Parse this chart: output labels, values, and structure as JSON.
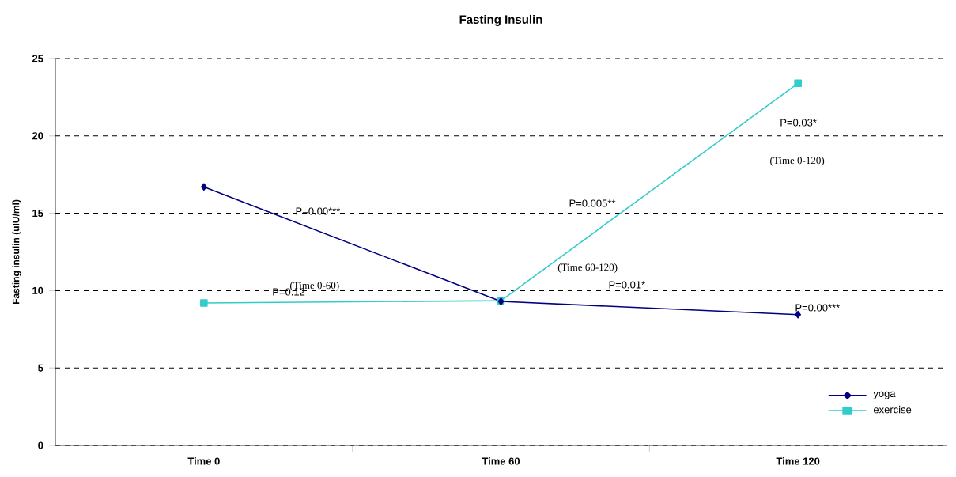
{
  "chart_data": {
    "type": "line",
    "title": "Fasting Insulin",
    "ylabel": "Fasting insulin (uIU/ml)",
    "categories": [
      "Time 0",
      "Time 60",
      "Time 120"
    ],
    "series": [
      {
        "name": "yoga",
        "color": "#000080",
        "marker": "diamond",
        "values": [
          16.7,
          9.3,
          8.45
        ]
      },
      {
        "name": "exercise",
        "color": "#33cccc",
        "marker": "square",
        "values": [
          9.2,
          9.35,
          23.4
        ]
      }
    ],
    "ylim": [
      0,
      25
    ],
    "yticks": [
      0,
      5,
      10,
      15,
      20,
      25
    ],
    "grid": "y",
    "legend": "bottom right",
    "line_style": "solid",
    "annotations": [
      "P=0.00***",
      "P=0.12",
      "(Time 0-60)",
      "P=0.005**",
      "(Time 60-120)",
      "P=0.01*",
      "P=0.03*",
      "(Time 0-120)",
      "P=0.00***"
    ]
  }
}
